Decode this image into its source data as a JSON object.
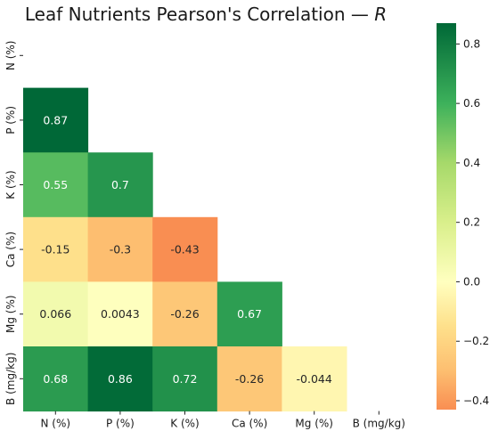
{
  "chart_data": {
    "type": "heatmap",
    "title": "Leaf Nutrients Pearson's Correlation — ",
    "title_italic": "R",
    "labels": [
      "N (%)",
      "P (%)",
      "K (%)",
      "Ca (%)",
      "Mg (%)",
      "B (mg/kg)"
    ],
    "mask": "upper-triangle-including-diagonal",
    "cells": [
      {
        "row": "P (%)",
        "col": "N (%)",
        "value": 0.87,
        "label": "0.87"
      },
      {
        "row": "K (%)",
        "col": "N (%)",
        "value": 0.55,
        "label": "0.55"
      },
      {
        "row": "K (%)",
        "col": "P (%)",
        "value": 0.7,
        "label": "0.7"
      },
      {
        "row": "Ca (%)",
        "col": "N (%)",
        "value": -0.15,
        "label": "-0.15"
      },
      {
        "row": "Ca (%)",
        "col": "P (%)",
        "value": -0.3,
        "label": "-0.3"
      },
      {
        "row": "Ca (%)",
        "col": "K (%)",
        "value": -0.43,
        "label": "-0.43"
      },
      {
        "row": "Mg (%)",
        "col": "N (%)",
        "value": 0.066,
        "label": "0.066"
      },
      {
        "row": "Mg (%)",
        "col": "P (%)",
        "value": 0.0043,
        "label": "0.0043"
      },
      {
        "row": "Mg (%)",
        "col": "K (%)",
        "value": -0.26,
        "label": "-0.26"
      },
      {
        "row": "Mg (%)",
        "col": "Ca (%)",
        "value": 0.67,
        "label": "0.67"
      },
      {
        "row": "B (mg/kg)",
        "col": "N (%)",
        "value": 0.68,
        "label": "0.68"
      },
      {
        "row": "B (mg/kg)",
        "col": "P (%)",
        "value": 0.86,
        "label": "0.86"
      },
      {
        "row": "B (mg/kg)",
        "col": "K (%)",
        "value": 0.72,
        "label": "0.72"
      },
      {
        "row": "B (mg/kg)",
        "col": "Ca (%)",
        "value": -0.26,
        "label": "-0.26"
      },
      {
        "row": "B (mg/kg)",
        "col": "Mg (%)",
        "value": -0.044,
        "label": "-0.044"
      }
    ],
    "colorbar": {
      "min": -0.43,
      "max": 0.87,
      "center": 0.0,
      "ticks": [
        {
          "value": 0.8,
          "label": "0.8"
        },
        {
          "value": 0.6,
          "label": "0.6"
        },
        {
          "value": 0.4,
          "label": "0.4"
        },
        {
          "value": 0.2,
          "label": "0.2"
        },
        {
          "value": 0.0,
          "label": "0.0"
        },
        {
          "value": -0.2,
          "label": "−0.2"
        },
        {
          "value": -0.4,
          "label": "−0.4"
        }
      ],
      "colormap_stops": [
        {
          "value": -0.43,
          "color": "#f98e52"
        },
        {
          "value": -0.3,
          "color": "#fdbe70"
        },
        {
          "value": -0.15,
          "color": "#fee08b"
        },
        {
          "value": 0.0,
          "color": "#ffffbf"
        },
        {
          "value": 0.2,
          "color": "#d9ef8b"
        },
        {
          "value": 0.4,
          "color": "#a6d96a"
        },
        {
          "value": 0.6,
          "color": "#3db15b"
        },
        {
          "value": 0.87,
          "color": "#006837"
        }
      ]
    }
  }
}
